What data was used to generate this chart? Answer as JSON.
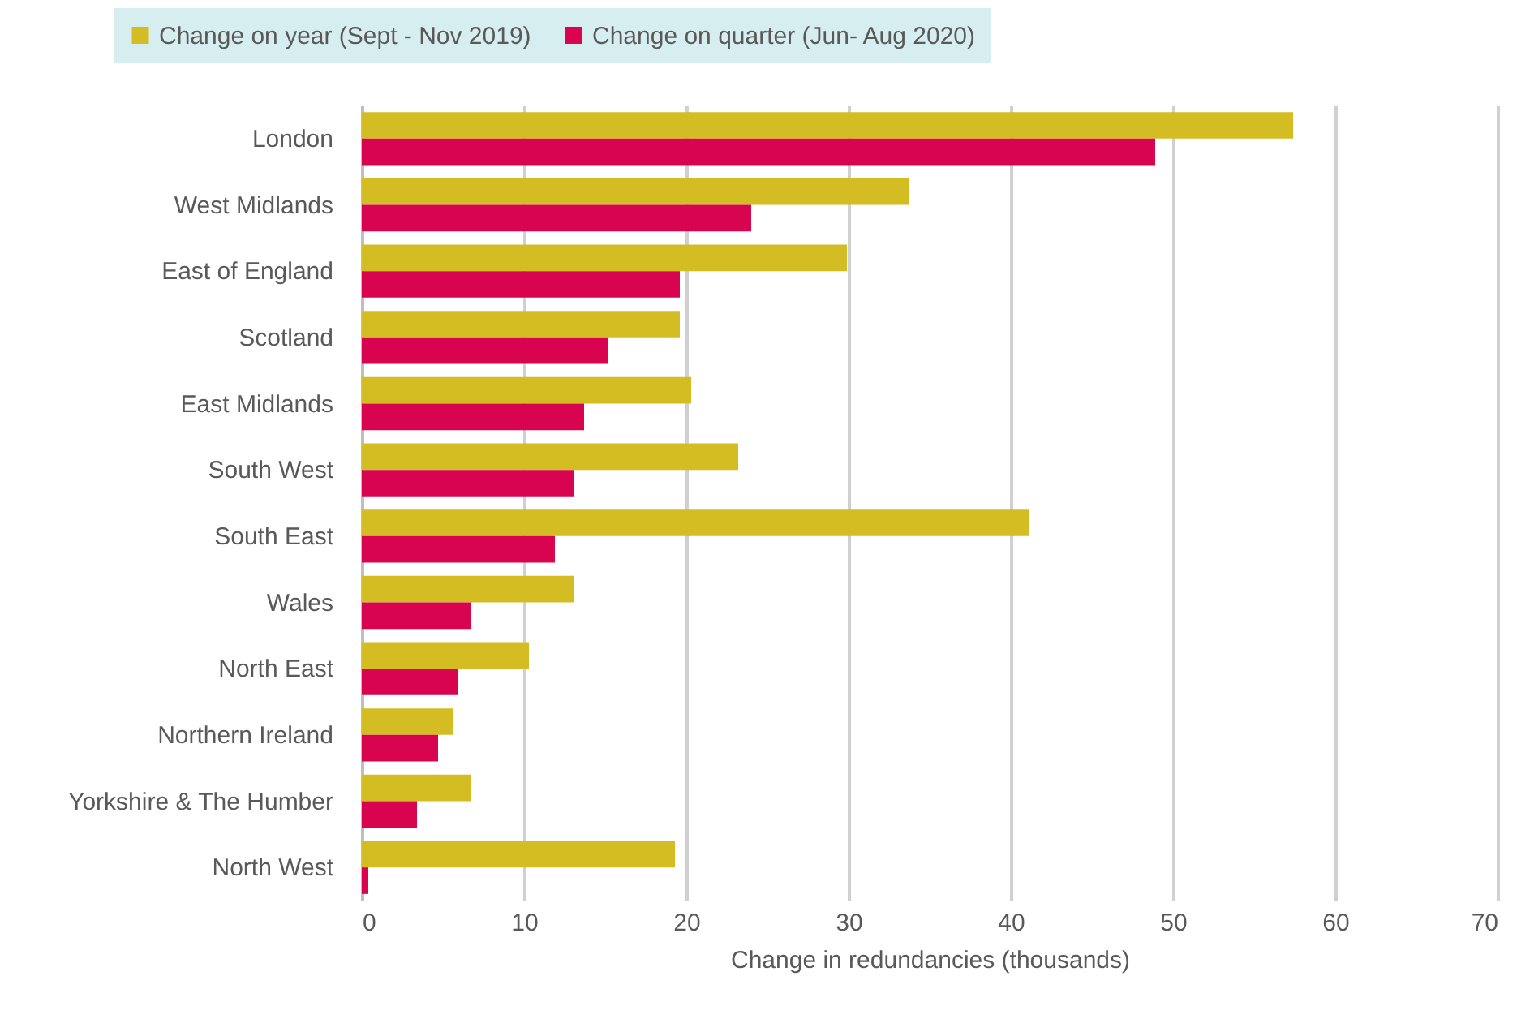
{
  "chart_data": {
    "type": "bar",
    "orientation": "horizontal",
    "xlabel": "Change in redundancies (thousands)",
    "categories": [
      "London",
      "West Midlands",
      "East of England",
      "Scotland",
      "East Midlands",
      "South West",
      "South East",
      "Wales",
      "North East",
      "Northern Ireland",
      "Yorkshire & The Humber",
      "North West"
    ],
    "series": [
      {
        "name": "Change on year (Sept - Nov 2019)",
        "color": "#d4bd22",
        "values": [
          57.4,
          33.7,
          29.9,
          19.6,
          20.3,
          23.2,
          41.1,
          13.1,
          10.3,
          5.6,
          6.7,
          19.3
        ]
      },
      {
        "name": "Change on quarter (Jun- Aug 2020)",
        "color": "#d9044f",
        "values": [
          48.9,
          24.0,
          19.6,
          15.2,
          13.7,
          13.1,
          11.9,
          6.7,
          5.9,
          4.7,
          3.4,
          0.4
        ]
      }
    ],
    "xlim": [
      0,
      70
    ],
    "xticks": [
      0,
      10,
      20,
      30,
      40,
      50,
      60,
      70
    ],
    "grid": "x",
    "legend": "top left"
  }
}
